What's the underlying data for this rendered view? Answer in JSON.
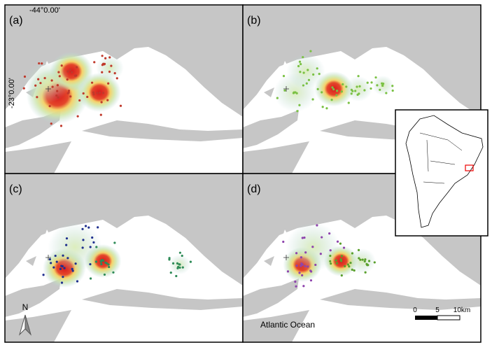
{
  "panels": [
    {
      "label": "(a)"
    },
    {
      "label": "(b)"
    },
    {
      "label": "(c)"
    },
    {
      "label": "(d)"
    }
  ],
  "coordinates": {
    "longitude": "-44°0.00'",
    "latitude": "-23°0.00'"
  },
  "north_arrow": "N",
  "scale_bar": {
    "labels": [
      "0",
      "5",
      "10km"
    ]
  },
  "water_label": "Atlantic Ocean"
}
